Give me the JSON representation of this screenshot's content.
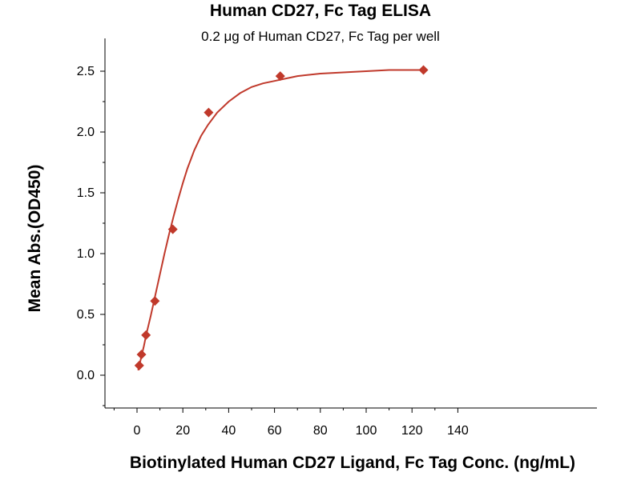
{
  "chart_data": {
    "type": "scatter",
    "title": "Human CD27, Fc Tag ELISA",
    "subtitle": "0.2 μg of Human CD27, Fc Tag per well",
    "xlabel": "Biotinylated Human CD27 Ligand, Fc Tag Conc. (ng/mL)",
    "ylabel": "Mean Abs.(OD450)",
    "xlim": [
      -10,
      140
    ],
    "ylim": [
      -0.3,
      2.75
    ],
    "xticks": [
      "0",
      "20",
      "40",
      "60",
      "80",
      "100",
      "120",
      "140"
    ],
    "yticks": [
      "0.0",
      "0.5",
      "1.0",
      "1.5",
      "2.0",
      "2.5"
    ],
    "grid": false,
    "color": "#c0392b",
    "series": [
      {
        "x": [
          0.98,
          1.95,
          3.91,
          7.81,
          15.63,
          31.25,
          62.5,
          125
        ],
        "y": [
          0.08,
          0.17,
          0.33,
          0.61,
          1.2,
          2.16,
          2.46,
          2.51
        ]
      }
    ],
    "fit_curve": {
      "x": [
        0.5,
        1,
        2,
        3,
        4,
        5,
        6,
        8,
        10,
        12,
        14,
        16,
        18,
        20,
        22,
        25,
        28,
        31,
        35,
        40,
        45,
        50,
        55,
        60,
        65,
        70,
        80,
        90,
        100,
        110,
        125
      ],
      "y": [
        0.04,
        0.08,
        0.16,
        0.24,
        0.33,
        0.41,
        0.49,
        0.66,
        0.83,
        1.0,
        1.16,
        1.31,
        1.45,
        1.58,
        1.7,
        1.85,
        1.97,
        2.06,
        2.16,
        2.25,
        2.32,
        2.37,
        2.4,
        2.42,
        2.44,
        2.46,
        2.48,
        2.49,
        2.5,
        2.51,
        2.51
      ]
    }
  }
}
